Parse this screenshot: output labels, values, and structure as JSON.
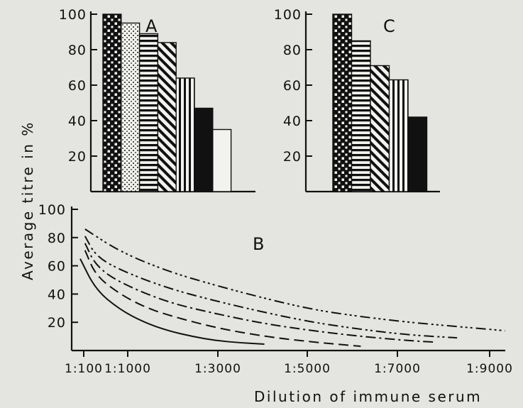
{
  "chart_data": [
    {
      "panel": "A",
      "type": "bar",
      "yticks": [
        20,
        40,
        60,
        80,
        100
      ],
      "ylim": [
        0,
        100
      ],
      "values": [
        100,
        95,
        89,
        84,
        64,
        47,
        35
      ],
      "patterns": [
        "checker",
        "dots",
        "hstripes",
        "diagonal",
        "vstripes",
        "solid",
        "blank"
      ]
    },
    {
      "panel": "C",
      "type": "bar",
      "yticks": [
        20,
        40,
        60,
        80,
        100
      ],
      "ylim": [
        0,
        100
      ],
      "values": [
        100,
        85,
        71,
        63,
        42
      ],
      "patterns": [
        "checker",
        "hstripes",
        "diagonal",
        "vstripes",
        "solid"
      ]
    },
    {
      "panel": "B",
      "type": "line",
      "ylim": [
        0,
        100
      ],
      "yticks": [
        20,
        40,
        60,
        80,
        100
      ],
      "xticks": [
        "1:100",
        "1:1000",
        "1:3000",
        "1:5000",
        "1:7000",
        "1:9000"
      ],
      "series": [
        {
          "style": "solid",
          "x": [
            100,
            500,
            1000,
            1500,
            2000,
            2500,
            3000,
            3500,
            4000
          ],
          "y": [
            65,
            43,
            29,
            20,
            14,
            10,
            7,
            5.5,
            4.5
          ]
        },
        {
          "style": "dash",
          "x": [
            100,
            500,
            1000,
            1500,
            2000,
            3000,
            4000,
            5000,
            6000
          ],
          "y": [
            71,
            53,
            40,
            31,
            25,
            16,
            10,
            6,
            3
          ]
        },
        {
          "style": "dashdot",
          "x": [
            100,
            500,
            1000,
            2000,
            3000,
            4000,
            5000,
            6000,
            7000,
            7500
          ],
          "y": [
            76,
            60,
            48,
            34,
            26,
            19,
            14,
            10,
            7,
            6
          ]
        },
        {
          "style": "dashdotdot",
          "x": [
            100,
            500,
            1000,
            2000,
            3000,
            4000,
            5000,
            6000,
            7000,
            8000
          ],
          "y": [
            81,
            67,
            57,
            44,
            35,
            27,
            20,
            15,
            11,
            9
          ]
        },
        {
          "style": "dashdotdotdot",
          "x": [
            100,
            1000,
            2000,
            3000,
            4000,
            5000,
            6000,
            7000,
            8000,
            9000
          ],
          "y": [
            86,
            70,
            56,
            46,
            37,
            29,
            24,
            20,
            17,
            14
          ]
        }
      ]
    }
  ],
  "labels": {
    "y_axis": "Average  titre  in %",
    "x_axis": "Dilution  of  immune  serum",
    "panel_a": "A",
    "panel_b": "B",
    "panel_c": "C"
  }
}
